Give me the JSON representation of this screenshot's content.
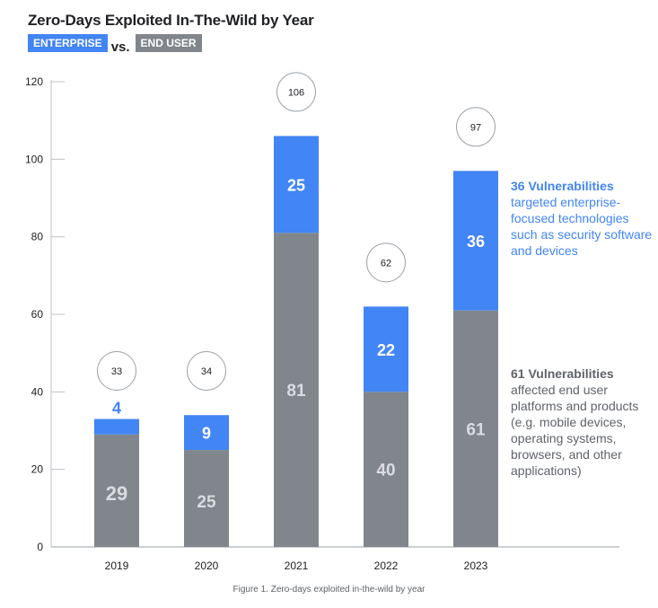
{
  "chart_data": {
    "type": "bar",
    "stacked": true,
    "title": "Zero-Days Exploited In-The-Wild by Year",
    "legend": [
      {
        "name": "ENTERPRISE",
        "color": "#4285F4"
      },
      {
        "name": "END USER",
        "color": "#80868B"
      }
    ],
    "legend_separator": "vs.",
    "categories": [
      "2019",
      "2020",
      "2021",
      "2022",
      "2023"
    ],
    "series": [
      {
        "name": "END USER",
        "color": "#80868B",
        "values": [
          29,
          25,
          81,
          40,
          61
        ]
      },
      {
        "name": "ENTERPRISE",
        "color": "#4285F4",
        "values": [
          4,
          9,
          25,
          22,
          36
        ]
      }
    ],
    "totals": [
      33,
      34,
      106,
      62,
      97
    ],
    "ylim": [
      0,
      120
    ],
    "yticks": [
      0,
      20,
      40,
      60,
      80,
      100,
      120
    ],
    "xlabel": "",
    "ylabel": "",
    "grid": false,
    "annotations": [
      {
        "bold": "36 Vulnerabilities",
        "text": "targeted enterprise-focused technologies such as security software and devices",
        "series": "ENTERPRISE"
      },
      {
        "bold": "61 Vulnerabilities",
        "text": "affected end user platforms and products (e.g. mobile devices, operating systems, browsers, and other applications)",
        "series": "END USER"
      }
    ],
    "caption": "Figure 1. Zero-days exploited in-the-wild by year"
  }
}
